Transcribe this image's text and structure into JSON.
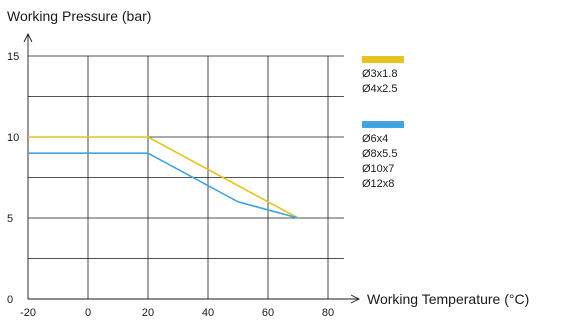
{
  "chart_data": {
    "type": "line",
    "ylabel": "Working Pressure (bar)",
    "xlabel": "Working Temperature (°C)",
    "xlim": [
      -20,
      80
    ],
    "ylim": [
      0,
      15
    ],
    "x_ticks": [
      "-20",
      "0",
      "20",
      "40",
      "60",
      "80"
    ],
    "y_ticks": [
      "0",
      "5",
      "10",
      "15"
    ],
    "grid": true,
    "legend_position": "right",
    "series": [
      {
        "labels": [
          "Ø3x1.8",
          "Ø4x2.5"
        ],
        "color": "#e8c21e",
        "points": [
          [
            -20,
            10
          ],
          [
            20,
            10
          ],
          [
            70,
            5
          ]
        ]
      },
      {
        "labels": [
          "Ø6x4",
          "Ø8x5.5",
          "Ø10x7",
          "Ø12x8"
        ],
        "color": "#3fa4e0",
        "points": [
          [
            -20,
            9
          ],
          [
            20,
            9
          ],
          [
            50,
            6
          ],
          [
            70,
            5
          ]
        ]
      }
    ]
  }
}
